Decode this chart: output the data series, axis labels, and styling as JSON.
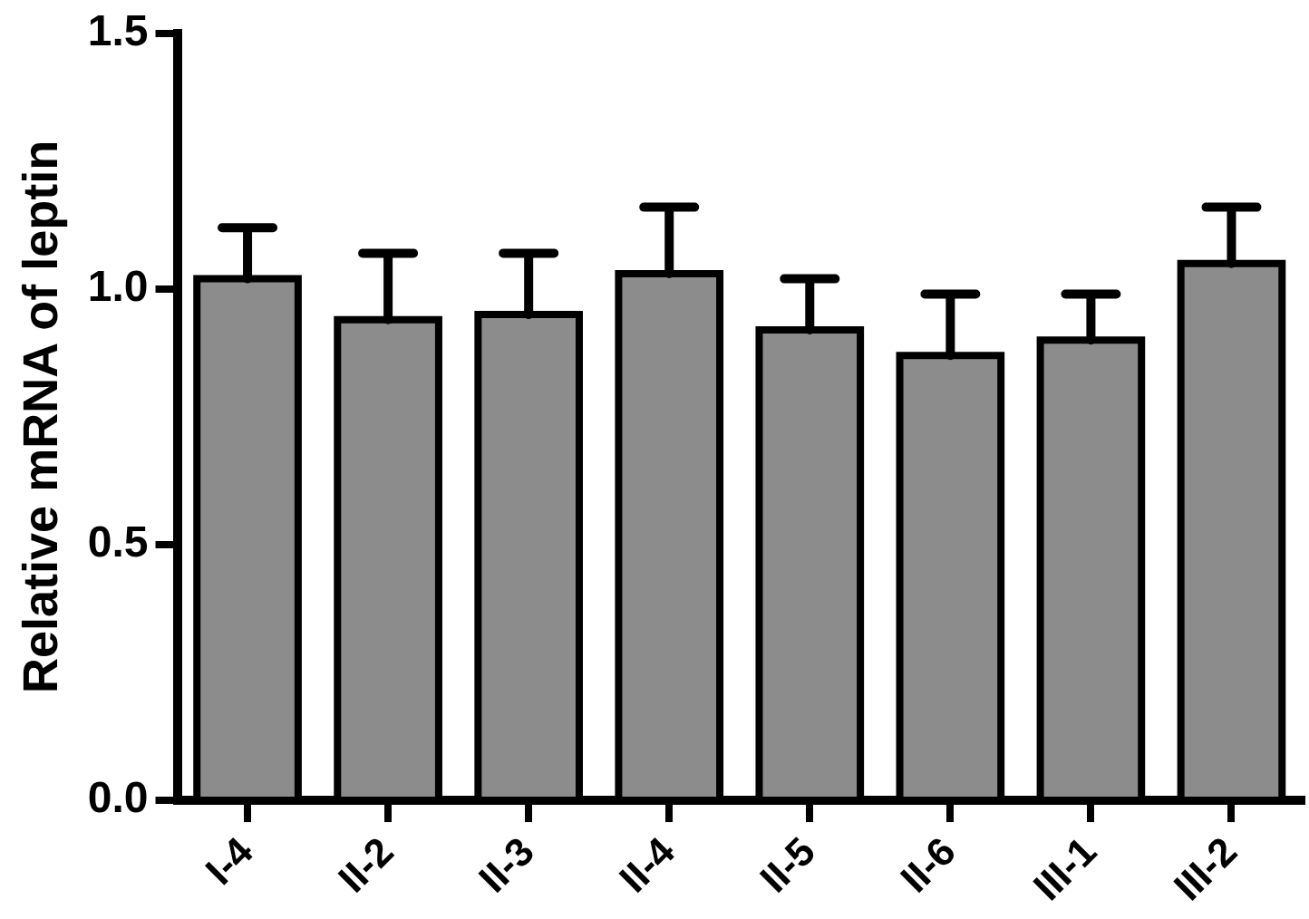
{
  "chart_data": {
    "type": "bar",
    "ylabel": "Relative mRNA of leptin",
    "categories": [
      "I-4",
      "II-2",
      "II-3",
      "II-4",
      "II-5",
      "II-6",
      "III-1",
      "III-2"
    ],
    "values": [
      1.02,
      0.94,
      0.95,
      1.03,
      0.92,
      0.87,
      0.9,
      1.05
    ],
    "errors": [
      [
        1.02,
        1.12
      ],
      [
        0.94,
        1.07
      ],
      [
        0.95,
        1.07
      ],
      [
        1.03,
        1.16
      ],
      [
        0.92,
        1.02
      ],
      [
        0.87,
        0.99
      ],
      [
        0.9,
        0.99
      ],
      [
        1.05,
        1.16
      ]
    ],
    "color": "#8c8c8c",
    "ylim": [
      0,
      1.5
    ],
    "yticks": [
      {
        "value": 0,
        "label": "0.0"
      },
      {
        "value": 0.5,
        "label": "0.5"
      },
      {
        "value": 1,
        "label": "1.0"
      },
      {
        "value": 1.5,
        "label": "1.5"
      }
    ],
    "grid": false,
    "legend": false
  }
}
